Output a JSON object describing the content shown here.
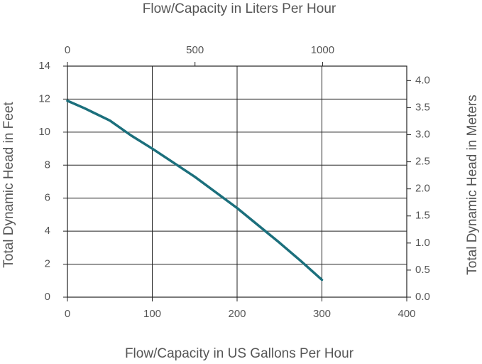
{
  "chart_data": {
    "type": "line",
    "title": "Flow/Capacity in Liters Per Hour",
    "x_label": "Flow/Capacity in US Gallons Per Hour",
    "y_label": "Total Dynamic Head in Feet",
    "y2_label": "Total Dynamic Head in Meters",
    "x": [
      0,
      20,
      50,
      75,
      100,
      150,
      200,
      250,
      275,
      300
    ],
    "series": [
      {
        "color": "#1b6f7c",
        "values": [
          11.9,
          11.45,
          10.7,
          9.8,
          9.0,
          7.3,
          5.4,
          3.3,
          2.2,
          1.05
        ]
      }
    ],
    "xlim": [
      0,
      400
    ],
    "xticks": [
      0,
      100,
      200,
      300,
      400
    ],
    "x2lim": [
      0,
      1330
    ],
    "x2ticks": [
      0,
      500,
      1000
    ],
    "ylim": [
      0,
      14
    ],
    "yticks": [
      0,
      2,
      4,
      6,
      8,
      10,
      12,
      14
    ],
    "y2lim": [
      0,
      4.267
    ],
    "y2ticks": [
      {
        "value": 0,
        "label": "0.0"
      },
      {
        "value": 0.5,
        "label": "0.5"
      },
      {
        "value": 1,
        "label": "1.0"
      },
      {
        "value": 1.5,
        "label": "1.5"
      },
      {
        "value": 2,
        "label": "2.0"
      },
      {
        "value": 2.5,
        "label": "2.5"
      },
      {
        "value": 3,
        "label": "3.0"
      },
      {
        "value": 3.5,
        "label": "3.5"
      },
      {
        "value": 4,
        "label": "4.0"
      }
    ],
    "grid": true
  }
}
